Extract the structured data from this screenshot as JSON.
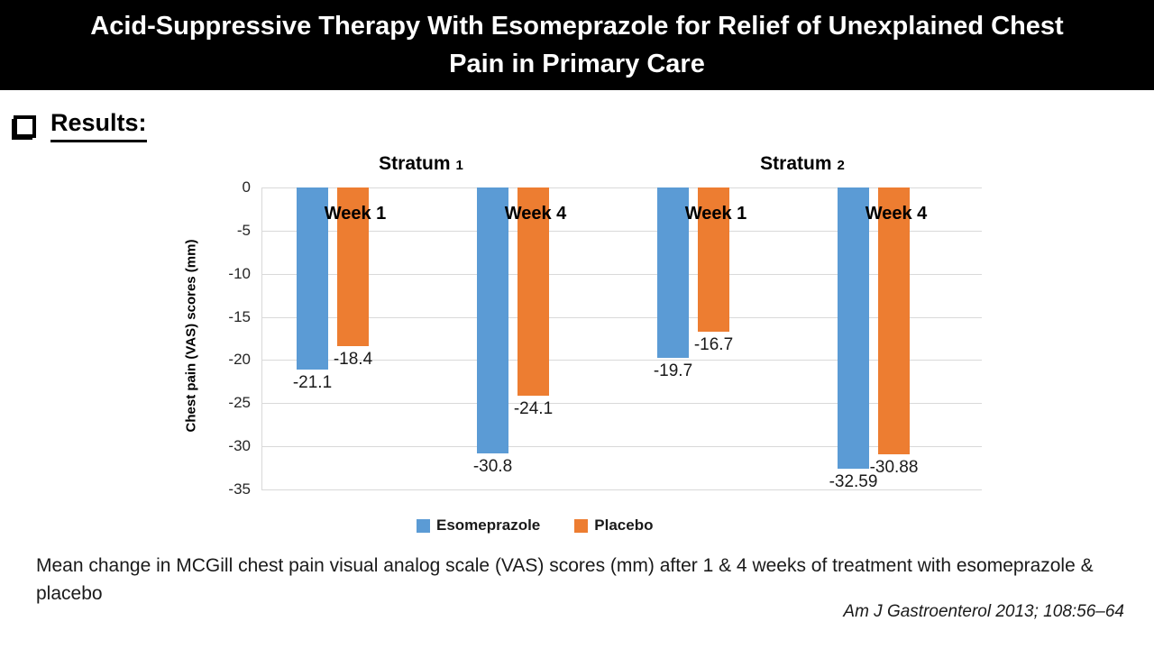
{
  "header": {
    "title_line1": "Acid-Suppressive Therapy With Esomeprazole for Relief of Unexplained Chest",
    "title_line2": "Pain in Primary Care"
  },
  "results_label": "Results:",
  "chart_data": {
    "type": "bar",
    "title": "",
    "xlabel": "",
    "ylabel": "Chest pain (VAS) scores (mm)",
    "ylim": [
      -35,
      0
    ],
    "yticks": [
      0,
      -5,
      -10,
      -15,
      -20,
      -25,
      -30,
      -35
    ],
    "grid": true,
    "legend_position": "bottom",
    "categories": [
      "Week 1",
      "Week 4",
      "Week 1",
      "Week 4"
    ],
    "strata": [
      {
        "label": "Stratum",
        "number": "1"
      },
      {
        "label": "Stratum",
        "number": "2"
      }
    ],
    "series": [
      {
        "name": "Esomeprazole",
        "color": "#5B9BD5",
        "values": [
          -21.1,
          -30.8,
          -19.7,
          -32.59
        ],
        "labels": [
          "-21.1",
          "-30.8",
          "-19.7",
          "-32.59"
        ]
      },
      {
        "name": "Placebo",
        "color": "#ED7D31",
        "values": [
          -18.4,
          -24.1,
          -16.7,
          -30.88
        ],
        "labels": [
          "-18.4",
          "-24.1",
          "-16.7",
          "-30.88"
        ]
      }
    ]
  },
  "caption": "Mean change in MCGill chest pain visual analog scale (VAS) scores (mm) after 1 & 4 weeks of treatment with esomeprazole & placebo",
  "citation": "Am J Gastroenterol 2013; 108:56–64"
}
